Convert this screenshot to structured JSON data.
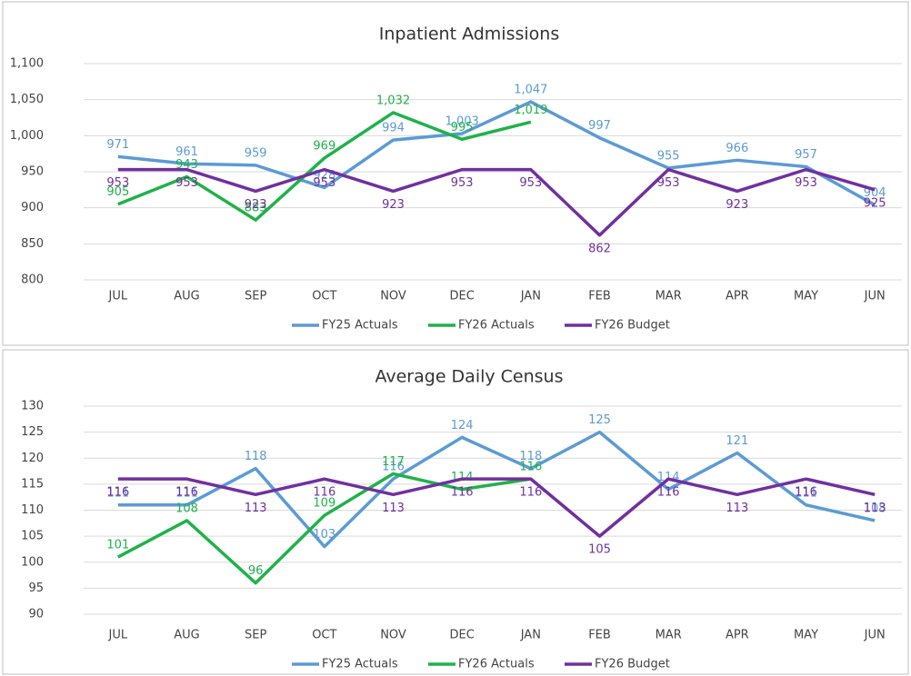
{
  "chart_data": [
    {
      "type": "line",
      "title": "Inpatient Admissions",
      "categories": [
        "JUL",
        "AUG",
        "SEP",
        "OCT",
        "NOV",
        "DEC",
        "JAN",
        "FEB",
        "MAR",
        "APR",
        "MAY",
        "JUN"
      ],
      "series": [
        {
          "name": "FY25 Actuals",
          "color": "#5b9bd5",
          "values": [
            971,
            961,
            959,
            928,
            994,
            1003,
            1047,
            997,
            955,
            966,
            957,
            904
          ],
          "value_labels": [
            "971",
            "961",
            "959",
            "928",
            "994",
            "1,003",
            "1,047",
            "997",
            "955",
            "966",
            "957",
            "904"
          ]
        },
        {
          "name": "FY26 Actuals",
          "color": "#1fb24a",
          "values": [
            905,
            943,
            883,
            969,
            1032,
            995,
            1019,
            null,
            null,
            null,
            null,
            null
          ],
          "value_labels": [
            "905",
            "943",
            "883",
            "969",
            "1,032",
            "995",
            "1,019",
            null,
            null,
            null,
            null,
            null
          ]
        },
        {
          "name": "FY26 Budget",
          "color": "#70309f",
          "values": [
            953,
            953,
            923,
            953,
            923,
            953,
            953,
            862,
            953,
            923,
            953,
            925
          ]
        }
      ],
      "ylim": [
        800,
        1100
      ],
      "yticks": [
        800,
        850,
        900,
        950,
        {
          "value": 1000,
          "label": "1,000"
        },
        {
          "value": 1050,
          "label": "1,050"
        },
        {
          "value": 1100,
          "label": "1,100"
        }
      ],
      "legend": "bottom"
    },
    {
      "type": "line",
      "title": "Average Daily Census",
      "categories": [
        "JUL",
        "AUG",
        "SEP",
        "OCT",
        "NOV",
        "DEC",
        "JAN",
        "FEB",
        "MAR",
        "APR",
        "MAY",
        "JUN"
      ],
      "series": [
        {
          "name": "FY25 Actuals",
          "color": "#5b9bd5",
          "values": [
            111,
            111,
            118,
            103,
            116,
            124,
            118,
            125,
            114,
            121,
            111,
            108
          ]
        },
        {
          "name": "FY26 Actuals",
          "color": "#1fb24a",
          "values": [
            101,
            108,
            96,
            109,
            117,
            114,
            116,
            null,
            null,
            null,
            null,
            null
          ]
        },
        {
          "name": "FY26 Budget",
          "color": "#70309f",
          "values": [
            116,
            116,
            113,
            116,
            113,
            116,
            116,
            105,
            116,
            113,
            116,
            113
          ]
        }
      ],
      "ylim": [
        90,
        130
      ],
      "yticks": [
        90,
        95,
        100,
        105,
        110,
        115,
        120,
        125,
        130
      ],
      "legend": "bottom"
    }
  ]
}
